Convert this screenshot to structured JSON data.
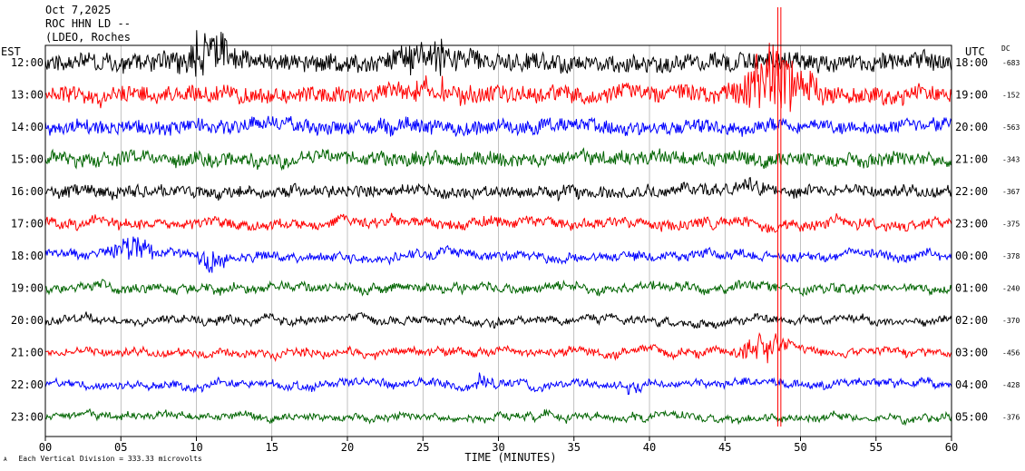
{
  "header": {
    "date": "Oct 7,2025",
    "station": "ROC HHN LD --",
    "network": "(LDEO, Roches"
  },
  "left_axis_label": "EST",
  "right_axis_label": "UTC",
  "dc_label": "DC",
  "footer": "Each Vertical Division =  333.33 microvolts",
  "footer_mark": "A",
  "chart_data": {
    "type": "line",
    "title": "",
    "xlabel": "TIME (MINUTES)",
    "ylabel": "",
    "x_ticks": [
      "00",
      "05",
      "10",
      "15",
      "20",
      "25",
      "30",
      "35",
      "40",
      "45",
      "50",
      "55",
      "60"
    ],
    "xlim": [
      0,
      60
    ],
    "grid": true,
    "trace_colors": [
      "#000000",
      "#ff0000",
      "#0000ff",
      "#006400"
    ],
    "rows": [
      {
        "est": "12:00",
        "utc": "18:00",
        "dc": "-683",
        "color": "#000000",
        "noise": 1.3,
        "events": [
          {
            "t": 10.5,
            "w": 2.0,
            "a": 1.6
          },
          {
            "t": 26,
            "w": 3.0,
            "a": 1.0
          }
        ]
      },
      {
        "est": "13:00",
        "utc": "19:00",
        "dc": "-152",
        "color": "#ff0000",
        "noise": 1.2,
        "events": [
          {
            "t": 48.5,
            "w": 2.5,
            "a": 2.5
          },
          {
            "t": 26,
            "w": 2.0,
            "a": 0.8
          }
        ]
      },
      {
        "est": "14:00",
        "utc": "20:00",
        "dc": "-563",
        "color": "#0000ff",
        "noise": 1.0,
        "events": []
      },
      {
        "est": "15:00",
        "utc": "21:00",
        "dc": "-343",
        "color": "#006400",
        "noise": 1.0,
        "events": []
      },
      {
        "est": "16:00",
        "utc": "22:00",
        "dc": "-367",
        "color": "#000000",
        "noise": 0.8,
        "events": [
          {
            "t": 47,
            "w": 1.0,
            "a": 0.6
          }
        ]
      },
      {
        "est": "17:00",
        "utc": "23:00",
        "dc": "-375",
        "color": "#ff0000",
        "noise": 0.7,
        "events": []
      },
      {
        "est": "18:00",
        "utc": "00:00",
        "dc": "-378",
        "color": "#0000ff",
        "noise": 0.6,
        "events": [
          {
            "t": 6,
            "w": 1.5,
            "a": 1.0
          },
          {
            "t": 11,
            "w": 1.0,
            "a": -0.8
          }
        ]
      },
      {
        "est": "19:00",
        "utc": "01:00",
        "dc": "-240",
        "color": "#006400",
        "noise": 0.6,
        "events": []
      },
      {
        "est": "20:00",
        "utc": "02:00",
        "dc": "-370",
        "color": "#000000",
        "noise": 0.5,
        "events": []
      },
      {
        "est": "21:00",
        "utc": "03:00",
        "dc": "-456",
        "color": "#ff0000",
        "noise": 0.5,
        "events": [
          {
            "t": 47.5,
            "w": 1.5,
            "a": 1.2
          }
        ]
      },
      {
        "est": "22:00",
        "utc": "04:00",
        "dc": "-428",
        "color": "#0000ff",
        "noise": 0.5,
        "events": [
          {
            "t": 29,
            "w": 0.6,
            "a": 0.8
          },
          {
            "t": 39,
            "w": 0.8,
            "a": -0.6
          }
        ]
      },
      {
        "est": "23:00",
        "utc": "05:00",
        "dc": "-376",
        "color": "#006400",
        "noise": 0.45,
        "events": []
      }
    ],
    "spike_lines_minutes": [
      48.5,
      48.7
    ]
  }
}
